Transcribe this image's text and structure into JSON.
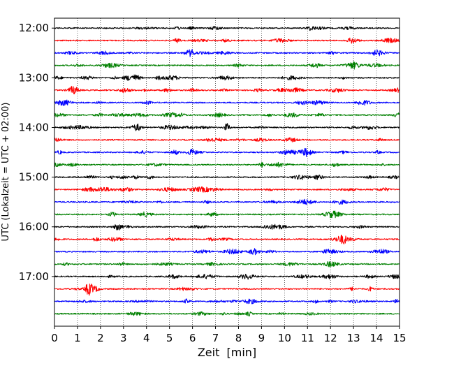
{
  "chart_data": {
    "type": "line",
    "title": "",
    "xlabel": "Zeit  [min]",
    "ylabel": "UTC (Lokalzeit = UTC + 02:00)",
    "xlim": [
      0,
      15
    ],
    "x_ticks": [
      "0",
      "1",
      "2",
      "3",
      "4",
      "5",
      "6",
      "7",
      "8",
      "9",
      "10",
      "11",
      "12",
      "13",
      "14",
      "15"
    ],
    "y_ticks": [
      "12:00",
      "13:00",
      "14:00",
      "15:00",
      "16:00",
      "17:00"
    ],
    "y_axis": "time of day, hours UTC, increasing downward",
    "ylim": [
      "11:48",
      "18:00"
    ],
    "grid": "vertical dotted lines at each minute",
    "trace_span_minutes": 15,
    "series_colors_cycle": [
      "#000000",
      "#ff0000",
      "#0000ff",
      "#008000"
    ],
    "traces": [
      {
        "start": "12:00",
        "color": "#000000"
      },
      {
        "start": "12:15",
        "color": "#ff0000"
      },
      {
        "start": "12:30",
        "color": "#0000ff"
      },
      {
        "start": "12:45",
        "color": "#008000"
      },
      {
        "start": "13:00",
        "color": "#000000"
      },
      {
        "start": "13:15",
        "color": "#ff0000"
      },
      {
        "start": "13:30",
        "color": "#0000ff"
      },
      {
        "start": "13:45",
        "color": "#008000"
      },
      {
        "start": "14:00",
        "color": "#000000"
      },
      {
        "start": "14:15",
        "color": "#ff0000"
      },
      {
        "start": "14:30",
        "color": "#0000ff"
      },
      {
        "start": "14:45",
        "color": "#008000"
      },
      {
        "start": "15:00",
        "color": "#000000"
      },
      {
        "start": "15:15",
        "color": "#ff0000"
      },
      {
        "start": "15:30",
        "color": "#0000ff"
      },
      {
        "start": "15:45",
        "color": "#008000"
      },
      {
        "start": "16:00",
        "color": "#000000"
      },
      {
        "start": "16:15",
        "color": "#ff0000"
      },
      {
        "start": "16:30",
        "color": "#0000ff"
      },
      {
        "start": "16:45",
        "color": "#008000"
      },
      {
        "start": "17:00",
        "color": "#000000"
      },
      {
        "start": "17:15",
        "color": "#ff0000"
      },
      {
        "start": "17:30",
        "color": "#0000ff"
      },
      {
        "start": "17:45",
        "color": "#008000"
      }
    ]
  }
}
